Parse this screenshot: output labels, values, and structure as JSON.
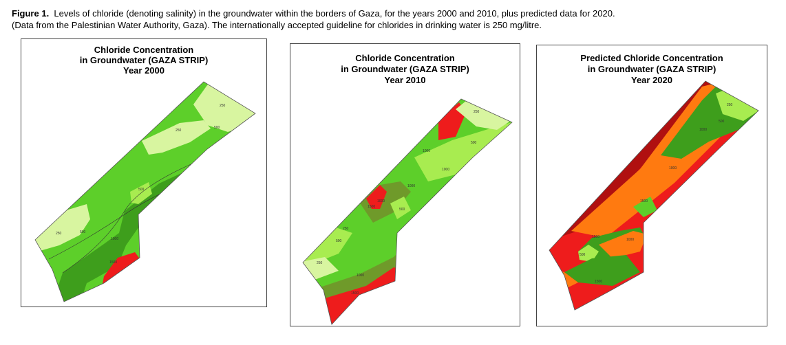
{
  "caption": {
    "label": "Figure 1.",
    "line1": "Levels of chloride (denoting salinity) in the groundwater within the borders of Gaza, for the years 2000 and 2010, plus predicted data for 2020.",
    "line2": "(Data from the Palestinian Water Authority, Gaza).  The internationally accepted guideline for chlorides in drinking water is 250 mg/litre."
  },
  "maps": [
    {
      "title1": "Chloride Concentration",
      "title2": "in Groundwater (GAZA STRIP)",
      "title3": "Year 2000",
      "contour_labels": [
        "250",
        "250",
        "500",
        "500",
        "250",
        "500",
        "1000",
        "1500"
      ]
    },
    {
      "title1": "Chloride Concentration",
      "title2": "in Groundwater (GAZA STRIP)",
      "title3": "Year 2010",
      "contour_labels": [
        "250",
        "500",
        "1000",
        "1000",
        "1000",
        "1000",
        "500",
        "250",
        "500",
        "250",
        "1000",
        "1500",
        "1500"
      ]
    },
    {
      "title1": "Predicted Chloride Concentration",
      "title2": "in Groundwater (GAZA STRIP)",
      "title3": "Year 2020",
      "contour_labels": [
        "250",
        "500",
        "1000",
        "1000",
        "1500",
        "1000",
        "1500",
        "500",
        "1500"
      ]
    }
  ],
  "colors": {
    "lightest_green": "#d8f5a0",
    "light_green": "#a8ec50",
    "green": "#5dcf2a",
    "dark_green": "#3e9e1c",
    "olive": "#6f9a2a",
    "red": "#ee1c1c",
    "dark_red": "#b01010",
    "orange": "#ff7a10"
  }
}
